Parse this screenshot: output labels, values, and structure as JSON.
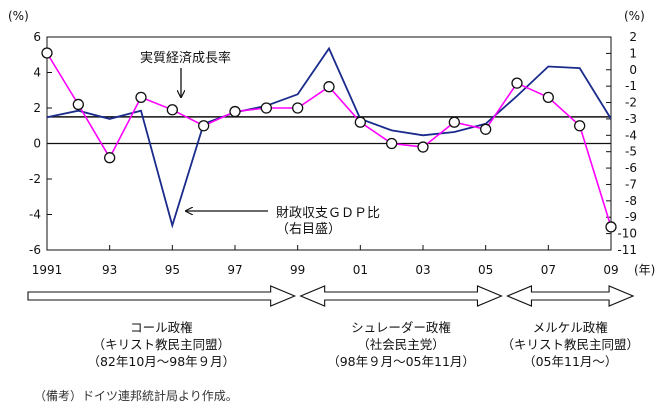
{
  "chart_data": {
    "type": "line",
    "left_axis": {
      "unit": "(%)",
      "range": [
        -6,
        6
      ],
      "ticks": [
        "6",
        "4",
        "2",
        "0",
        "-2",
        "-4",
        "-6"
      ]
    },
    "right_axis": {
      "unit": "(%)",
      "range": [
        -11,
        2
      ],
      "ticks": [
        "2",
        "1",
        "0",
        "-1",
        "-2",
        "-3",
        "-4",
        "-5",
        "-6",
        "-7",
        "-8",
        "-9",
        "-10",
        "-11"
      ]
    },
    "x_axis": {
      "unit": "(年)",
      "tick_labels": [
        "1991",
        "93",
        "95",
        "97",
        "99",
        "01",
        "03",
        "05",
        "07",
        "09"
      ],
      "tick_years": [
        1991,
        1993,
        1995,
        1997,
        1999,
        2001,
        2003,
        2005,
        2007,
        2009
      ],
      "range": [
        1991,
        2009
      ]
    },
    "series": [
      {
        "name": "実質経済成長率",
        "axis": "left",
        "color": "#ff00ff",
        "marker": "circle",
        "x": [
          1991,
          1992,
          1993,
          1994,
          1995,
          1996,
          1997,
          1998,
          1999,
          2000,
          2001,
          2002,
          2003,
          2004,
          2005,
          2006,
          2007,
          2008,
          2009
        ],
        "values": [
          5.1,
          2.2,
          -0.8,
          2.6,
          1.9,
          1.0,
          1.8,
          2.0,
          2.0,
          3.2,
          1.2,
          0.0,
          -0.2,
          1.2,
          0.8,
          3.4,
          2.6,
          1.0,
          -4.7
        ]
      },
      {
        "name": "財政収支ＧＤＰ比",
        "axis": "right",
        "color": "#1a2b8c",
        "marker": "none",
        "x": [
          1991,
          1992,
          1993,
          1994,
          1995,
          1996,
          1997,
          1998,
          1999,
          2000,
          2001,
          2002,
          2003,
          2004,
          2005,
          2006,
          2007,
          2008,
          2009
        ],
        "values": [
          -2.9,
          -2.5,
          -3.0,
          -2.5,
          -9.5,
          -3.3,
          -2.6,
          -2.2,
          -1.5,
          1.3,
          -3.0,
          -3.7,
          -4.0,
          -3.8,
          -3.3,
          -1.6,
          0.2,
          0.1,
          -3.0
        ]
      }
    ],
    "reference_line": {
      "axis": "left",
      "value": 1.5,
      "color": "#111111"
    },
    "annotations": {
      "growth_label": "実質経済成長率",
      "balance_label_line1": "財政収支ＧＤＰ比",
      "balance_label_line2": "（右目盛）"
    }
  },
  "eras": [
    {
      "name": "コール政権",
      "detail1": "（キリスト教民主同盟）",
      "detail2": "（82年10月〜98年９月）",
      "from": 1990.8,
      "to": 1999,
      "start_arrow": false
    },
    {
      "name": "シュレーダー政権",
      "detail1": "（社会民主党）",
      "detail2": "（98年９月〜05年11月）",
      "from": 1999,
      "to": 2005.6,
      "start_arrow": true
    },
    {
      "name": "メルケル政権",
      "detail1": "（キリスト教民主同盟）",
      "detail2": "（05年11月〜）",
      "from": 2005.6,
      "to": 2009.8,
      "start_arrow": true
    }
  ],
  "note": "（備考）ドイツ連邦統計局より作成。"
}
